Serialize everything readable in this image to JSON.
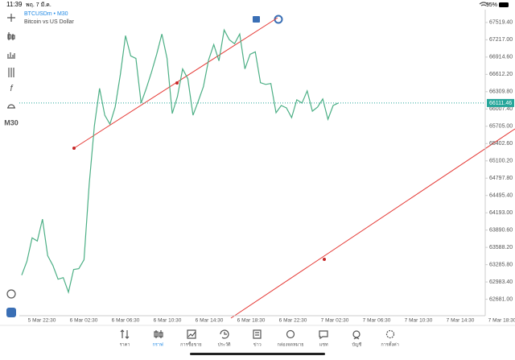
{
  "status_bar": {
    "time": "11:39",
    "date": "พฤ. 7 มี.ค.",
    "battery": "95%"
  },
  "toolbar": {
    "timeframe": "M30"
  },
  "chart_data": {
    "type": "line",
    "title": "BTCUSDm • M30",
    "subtitle": "Bitcoin vs US Dollar",
    "color": "#4caf85",
    "values": [
      63103,
      63344,
      63755,
      63699,
      64082,
      63443,
      63273,
      63032,
      63060,
      62805,
      63202,
      63216,
      63372,
      64692,
      65714,
      66367,
      65898,
      65742,
      66040,
      66608,
      67289,
      66934,
      66891,
      66111,
      66367,
      66650,
      66963,
      67317,
      66891,
      65927,
      66225,
      66707,
      66537,
      65898,
      66140,
      66395,
      66863,
      67133,
      66849,
      67388,
      67218,
      67147,
      67317,
      66707,
      66963,
      67005,
      66466,
      66437,
      66452,
      65941,
      66068,
      66026,
      65856,
      66168,
      66111,
      66324,
      65969,
      66040,
      66182,
      65827,
      66068,
      66111.46
    ],
    "xtick_labels": [
      "5 Mar 22:30",
      "6 Mar 02:30",
      "6 Mar 06:30",
      "6 Mar 10:30",
      "6 Mar 14:30",
      "6 Mar 18:30",
      "6 Mar 22:30",
      "7 Mar 02:30",
      "7 Mar 06:30",
      "7 Mar 10:30",
      "7 Mar 14:30",
      "7 Mar 18:30"
    ],
    "ylim": [
      62394,
      67743
    ],
    "yticks": [
      {
        "value": 67519.4,
        "label": "67519.40"
      },
      {
        "value": 67217,
        "label": "67217.00"
      },
      {
        "value": 66914.6,
        "label": "66914.60"
      },
      {
        "value": 66612.2,
        "label": "66612.20"
      },
      {
        "value": 66309.8,
        "label": "66309.80"
      },
      {
        "value": 66007.4,
        "label": "66007.40"
      },
      {
        "value": 65705,
        "label": "65705.00"
      },
      {
        "value": 65402.6,
        "label": "65402.60"
      },
      {
        "value": 65100.2,
        "label": "65100.20"
      },
      {
        "value": 64797.8,
        "label": "64797.80"
      },
      {
        "value": 64495.4,
        "label": "64495.40"
      },
      {
        "value": 64193,
        "label": "64193.00"
      },
      {
        "value": 63890.6,
        "label": "63890.60"
      },
      {
        "value": 63588.2,
        "label": "63588.20"
      },
      {
        "value": 63285.8,
        "label": "63285.80"
      },
      {
        "value": 62983.4,
        "label": "62983.40"
      },
      {
        "value": 62681,
        "label": "62681.00"
      }
    ],
    "current_price": 66111.46,
    "current_price_color": "#26a69a",
    "grid": false
  },
  "tabs": {
    "items": [
      "ราคา",
      "กราฟ",
      "การซื้อขาย",
      "ประวัติ",
      "ข่าว",
      "กล่องจดหมาย",
      "แชท",
      "บัญชี",
      "การตั้งค่า"
    ],
    "active": 1,
    "active_color": "#1e88e5"
  }
}
